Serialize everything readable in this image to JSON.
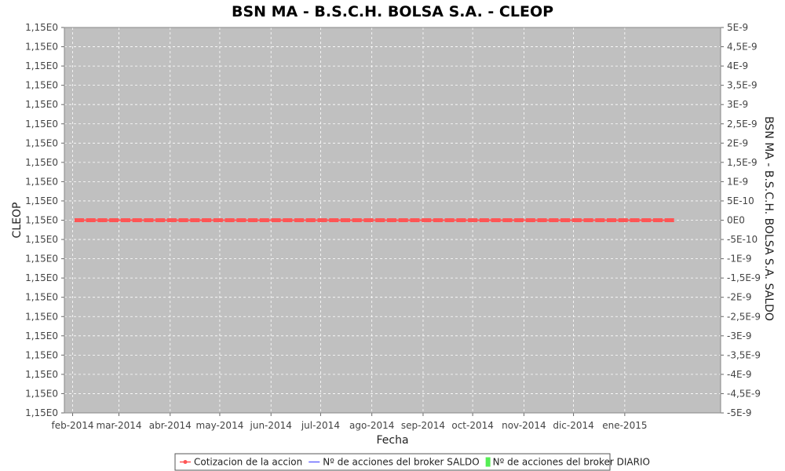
{
  "chart_data": {
    "type": "line",
    "title": "BSN MA - B.S.C.H. BOLSA S.A. - CLEOP",
    "xlabel": "Fecha",
    "ylabel": "CLEOP",
    "y2label": "BSN MA - B.S.C.H. BOLSA S.A. SALDO",
    "x_ticks": [
      "feb-2014",
      "mar-2014",
      "abr-2014",
      "may-2014",
      "jun-2014",
      "jul-2014",
      "ago-2014",
      "sep-2014",
      "oct-2014",
      "nov-2014",
      "dic-2014",
      "ene-2015"
    ],
    "y_left_ticks": [
      "1,15E0",
      "1,15E0",
      "1,15E0",
      "1,15E0",
      "1,15E0",
      "1,15E0",
      "1,15E0",
      "1,15E0",
      "1,15E0",
      "1,15E0",
      "1,15E0",
      "1,15E0",
      "1,15E0",
      "1,15E0",
      "1,15E0",
      "1,15E0",
      "1,15E0",
      "1,15E0",
      "1,15E0",
      "1,15E0",
      "1,15E0"
    ],
    "y_right_ticks": [
      "5E-9",
      "4,5E-9",
      "4E-9",
      "3,5E-9",
      "3E-9",
      "2,5E-9",
      "2E-9",
      "1,5E-9",
      "1E-9",
      "5E-10",
      "0E0",
      "-5E-10",
      "-1E-9",
      "-1,5E-9",
      "-2E-9",
      "-2,5E-9",
      "-3E-9",
      "-3,5E-9",
      "-4E-9",
      "-4,5E-9",
      "-5E-9"
    ],
    "y_right_range": [
      -5e-09,
      5e-09
    ],
    "x_range": [
      "2014-01-27",
      "2015-02-28"
    ],
    "grid": true,
    "background_color": "#c0c0c0",
    "legend_position": "bottom",
    "series": [
      {
        "name": "Cotizacion de la accion",
        "color": "#ff5555",
        "kind": "line-markers",
        "axis": "left",
        "x_start": "2014-02-03",
        "x_end": "2015-01-30",
        "value": 1.15
      },
      {
        "name": "Nº de acciones del broker SALDO",
        "color": "#6666ff",
        "kind": "line",
        "axis": "right",
        "values": []
      },
      {
        "name": "Nº de acciones del broker DIARIO",
        "color": "#55ee55",
        "kind": "bar",
        "axis": "right",
        "values": []
      }
    ]
  }
}
